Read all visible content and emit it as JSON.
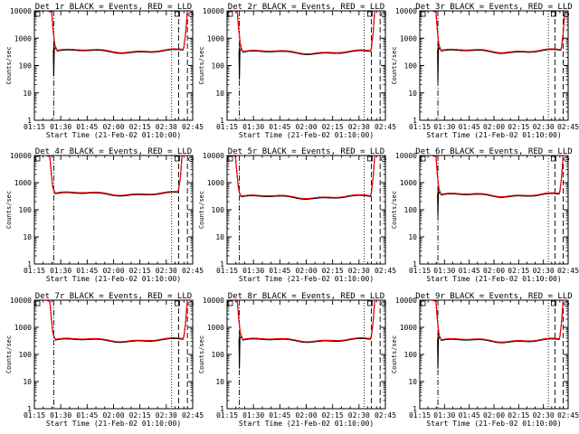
{
  "chart_data": [
    {
      "type": "line",
      "title": "Det 1r BLACK = Events, RED = LLD",
      "xlabel": "Start Time (21-Feb-02 01:10:00)",
      "ylabel": "Counts/sec",
      "ylim": [
        1,
        10000
      ],
      "yscale": "log",
      "xtick_labels": [
        "01:15",
        "01:30",
        "01:45",
        "02:00",
        "02:15",
        "02:30",
        "02:45"
      ],
      "ytick_labels": [
        "1",
        "10",
        "100",
        "1000",
        "10000"
      ],
      "series": [
        {
          "name": "Events",
          "color": "#000000"
        },
        {
          "name": "LLD",
          "color": "#ff0000"
        }
      ],
      "profile": {
        "level": 330,
        "rise_level": 470,
        "dip_min": 40,
        "dip_time": "01:26",
        "onset_time": "01:27",
        "end_time": "02:41"
      },
      "vlines": [
        {
          "time": "01:26",
          "style": "dashdot"
        },
        {
          "time": "02:33",
          "style": "dotted"
        },
        {
          "time": "02:37",
          "style": "dashed"
        },
        {
          "time": "02:42",
          "style": "dashed"
        }
      ]
    },
    {
      "type": "line",
      "title": "Det 2r BLACK = Events, RED = LLD",
      "xlabel": "Start Time (21-Feb-02 01:10:00)",
      "ylabel": "Counts/sec",
      "ylim": [
        1,
        10000
      ],
      "yscale": "log",
      "xtick_labels": [
        "01:15",
        "01:30",
        "01:45",
        "02:00",
        "02:15",
        "02:30",
        "02:45"
      ],
      "ytick_labels": [
        "1",
        "10",
        "100",
        "1000",
        "10000"
      ],
      "series": [
        {
          "name": "Events",
          "color": "#000000"
        },
        {
          "name": "LLD",
          "color": "#ff0000"
        }
      ],
      "profile": {
        "level": 300,
        "rise_level": 420,
        "dip_min": 30,
        "dip_time": "01:22",
        "onset_time": "01:23",
        "end_time": "02:38"
      },
      "vlines": [
        {
          "time": "01:22",
          "style": "dashdot"
        },
        {
          "time": "02:33",
          "style": "dotted"
        },
        {
          "time": "02:37",
          "style": "dashed"
        },
        {
          "time": "02:42",
          "style": "dashed"
        }
      ]
    },
    {
      "type": "line",
      "title": "Det 3r BLACK = Events, RED = LLD",
      "xlabel": "Start Time (21-Feb-02 01:10:00)",
      "ylabel": "Counts/sec",
      "ylim": [
        1,
        10000
      ],
      "yscale": "log",
      "xtick_labels": [
        "01:15",
        "01:30",
        "01:45",
        "02:00",
        "02:15",
        "02:30",
        "02:45"
      ],
      "ytick_labels": [
        "1",
        "10",
        "100",
        "1000",
        "10000"
      ],
      "series": [
        {
          "name": "Events",
          "color": "#000000"
        },
        {
          "name": "LLD",
          "color": "#ff0000"
        }
      ],
      "profile": {
        "level": 330,
        "rise_level": 470,
        "dip_min": 25,
        "dip_time": "01:26",
        "onset_time": "01:27",
        "end_time": "02:42"
      },
      "vlines": [
        {
          "time": "01:26",
          "style": "dashdot"
        },
        {
          "time": "02:33",
          "style": "dotted"
        },
        {
          "time": "02:37",
          "style": "dashed"
        },
        {
          "time": "02:42",
          "style": "dashed"
        }
      ]
    },
    {
      "type": "line",
      "title": "Det 4r BLACK = Events, RED = LLD",
      "xlabel": "Start Time (21-Feb-02 01:10:00)",
      "ylabel": "Counts/sec",
      "ylim": [
        1,
        10000
      ],
      "yscale": "log",
      "xtick_labels": [
        "01:15",
        "01:30",
        "01:45",
        "02:00",
        "02:15",
        "02:30",
        "02:45"
      ],
      "ytick_labels": [
        "1",
        "10",
        "100",
        "1000",
        "10000"
      ],
      "series": [
        {
          "name": "Events",
          "color": "#000000"
        },
        {
          "name": "LLD",
          "color": "#ff0000"
        }
      ],
      "profile": {
        "level": 380,
        "rise_level": 520,
        "dip_min": 400,
        "dip_time": "01:26",
        "onset_time": "01:26",
        "end_time": "02:38"
      },
      "vlines": [
        {
          "time": "01:26",
          "style": "dashdot"
        },
        {
          "time": "02:33",
          "style": "dotted"
        },
        {
          "time": "02:37",
          "style": "dashed"
        },
        {
          "time": "02:42",
          "style": "dashed"
        }
      ]
    },
    {
      "type": "line",
      "title": "Det 5r BLACK = Events, RED = LLD",
      "xlabel": "Start Time (21-Feb-02 01:10:00)",
      "ylabel": "Counts/sec",
      "ylim": [
        1,
        10000
      ],
      "yscale": "log",
      "xtick_labels": [
        "01:15",
        "01:30",
        "01:45",
        "02:00",
        "02:15",
        "02:30",
        "02:45"
      ],
      "ytick_labels": [
        "1",
        "10",
        "100",
        "1000",
        "10000"
      ],
      "series": [
        {
          "name": "Events",
          "color": "#000000"
        },
        {
          "name": "LLD",
          "color": "#ff0000"
        }
      ],
      "profile": {
        "level": 290,
        "rise_level": 420,
        "dip_min": 300,
        "dip_time": "01:22",
        "onset_time": "01:22",
        "end_time": "02:38"
      },
      "vlines": [
        {
          "time": "01:22",
          "style": "dashdot"
        },
        {
          "time": "02:33",
          "style": "dotted"
        },
        {
          "time": "02:37",
          "style": "dashed"
        },
        {
          "time": "02:42",
          "style": "dashed"
        }
      ]
    },
    {
      "type": "line",
      "title": "Det 6r BLACK = Events, RED = LLD",
      "xlabel": "Start Time (21-Feb-02 01:10:00)",
      "ylabel": "Counts/sec",
      "ylim": [
        1,
        10000
      ],
      "yscale": "log",
      "xtick_labels": [
        "01:15",
        "01:30",
        "01:45",
        "02:00",
        "02:15",
        "02:30",
        "02:45"
      ],
      "ytick_labels": [
        "1",
        "10",
        "100",
        "1000",
        "10000"
      ],
      "series": [
        {
          "name": "Events",
          "color": "#000000"
        },
        {
          "name": "LLD",
          "color": "#ff0000"
        }
      ],
      "profile": {
        "level": 340,
        "rise_level": 480,
        "dip_min": 60,
        "dip_time": "01:26",
        "onset_time": "01:27",
        "end_time": "02:41"
      },
      "vlines": [
        {
          "time": "01:26",
          "style": "dashdot"
        },
        {
          "time": "02:33",
          "style": "dotted"
        },
        {
          "time": "02:37",
          "style": "dashed"
        },
        {
          "time": "02:42",
          "style": "dashed"
        }
      ]
    },
    {
      "type": "line",
      "title": "Det 7r BLACK = Events, RED = LLD",
      "xlabel": "Start Time (21-Feb-02 01:10:00)",
      "ylabel": "Counts/sec",
      "ylim": [
        1,
        10000
      ],
      "yscale": "log",
      "xtick_labels": [
        "01:15",
        "01:30",
        "01:45",
        "02:00",
        "02:15",
        "02:30",
        "02:45"
      ],
      "ytick_labels": [
        "1",
        "10",
        "100",
        "1000",
        "10000"
      ],
      "series": [
        {
          "name": "Events",
          "color": "#000000"
        },
        {
          "name": "LLD",
          "color": "#ff0000"
        }
      ],
      "profile": {
        "level": 330,
        "rise_level": 470,
        "dip_min": 330,
        "dip_time": "01:26",
        "onset_time": "01:26",
        "end_time": "02:41"
      },
      "vlines": [
        {
          "time": "01:26",
          "style": "dashdot"
        },
        {
          "time": "02:33",
          "style": "dotted"
        },
        {
          "time": "02:37",
          "style": "dashed"
        },
        {
          "time": "02:42",
          "style": "dashed"
        }
      ]
    },
    {
      "type": "line",
      "title": "Det 8r BLACK = Events, RED = LLD",
      "xlabel": "Start Time (21-Feb-02 01:10:00)",
      "ylabel": "Counts/sec",
      "ylim": [
        1,
        10000
      ],
      "yscale": "log",
      "xtick_labels": [
        "01:15",
        "01:30",
        "01:45",
        "02:00",
        "02:15",
        "02:30",
        "02:45"
      ],
      "ytick_labels": [
        "1",
        "10",
        "100",
        "1000",
        "10000"
      ],
      "series": [
        {
          "name": "Events",
          "color": "#000000"
        },
        {
          "name": "LLD",
          "color": "#ff0000"
        }
      ],
      "profile": {
        "level": 330,
        "rise_level": 470,
        "dip_min": 30,
        "dip_time": "01:22",
        "onset_time": "01:23",
        "end_time": "02:38"
      },
      "vlines": [
        {
          "time": "01:22",
          "style": "dashdot"
        },
        {
          "time": "02:33",
          "style": "dotted"
        },
        {
          "time": "02:37",
          "style": "dashed"
        },
        {
          "time": "02:42",
          "style": "dashed"
        }
      ]
    },
    {
      "type": "line",
      "title": "Det 9r BLACK = Events, RED = LLD",
      "xlabel": "Start Time (21-Feb-02 01:10:00)",
      "ylabel": "Counts/sec",
      "ylim": [
        1,
        10000
      ],
      "yscale": "log",
      "xtick_labels": [
        "01:15",
        "01:30",
        "01:45",
        "02:00",
        "02:15",
        "02:30",
        "02:45"
      ],
      "ytick_labels": [
        "1",
        "10",
        "100",
        "1000",
        "10000"
      ],
      "series": [
        {
          "name": "Events",
          "color": "#000000"
        },
        {
          "name": "LLD",
          "color": "#ff0000"
        }
      ],
      "profile": {
        "level": 320,
        "rise_level": 460,
        "dip_min": 30,
        "dip_time": "01:26",
        "onset_time": "01:27",
        "end_time": "02:41"
      },
      "vlines": [
        {
          "time": "01:26",
          "style": "dashdot"
        },
        {
          "time": "02:33",
          "style": "dotted"
        },
        {
          "time": "02:37",
          "style": "dashed"
        },
        {
          "time": "02:42",
          "style": "dashed"
        }
      ]
    }
  ]
}
